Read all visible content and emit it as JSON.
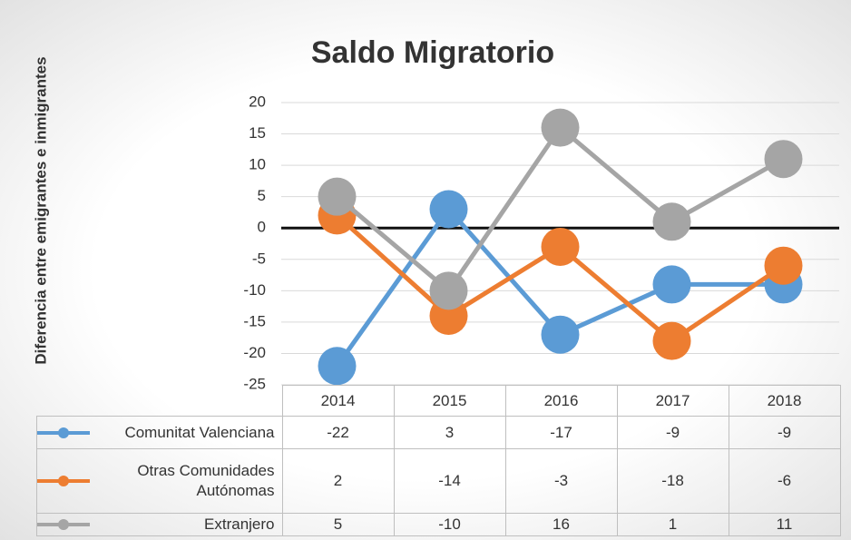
{
  "chart_data": {
    "type": "line",
    "title": "Saldo Migratorio",
    "y_label": "Diferencia entre emigrantes e inmigrantes",
    "categories": [
      "2014",
      "2015",
      "2016",
      "2017",
      "2018"
    ],
    "series": [
      {
        "name": "Comunitat Valenciana",
        "color": "#5b9bd5",
        "values": [
          -22,
          3,
          -17,
          -9,
          -9
        ]
      },
      {
        "name": "Otras Comunidades Autónomas",
        "color": "#ed7d31",
        "values": [
          2,
          -14,
          -3,
          -18,
          -6
        ]
      },
      {
        "name": "Extranjero",
        "color": "#a5a5a5",
        "values": [
          5,
          -10,
          16,
          1,
          11
        ]
      }
    ],
    "ylim": [
      -25,
      20
    ],
    "yticks": [
      -25,
      -20,
      -15,
      -10,
      -5,
      0,
      5,
      10,
      15,
      20
    ],
    "grid": true
  }
}
